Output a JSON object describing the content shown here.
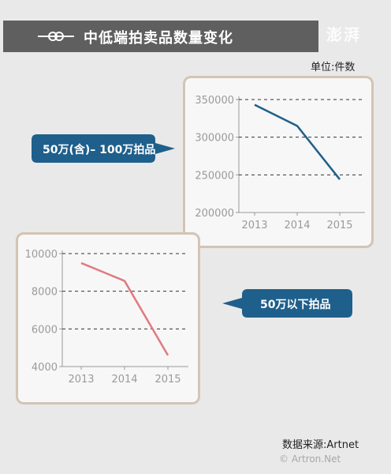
{
  "header": {
    "title": "中低端拍卖品数量变化",
    "logo": "澎湃"
  },
  "unit_label": "单位:件数",
  "source_label": "数据来源:Artnet",
  "watermark": "© Artron.Net",
  "colors": {
    "header_bg": "#5f5f5f",
    "panel_border": "#d3c4b4",
    "callout_bg": "#1f5f8b",
    "series_blue": "#1f5f8b",
    "series_red": "#e07a7f"
  },
  "chart_data": [
    {
      "type": "line",
      "callout": "50万(含)– 100万拍品",
      "categories": [
        "2013",
        "2014",
        "2015"
      ],
      "series": [
        {
          "values": [
            343000,
            315000,
            244000
          ]
        }
      ],
      "yticks": [
        "350000",
        "300000",
        "250000",
        "200000"
      ],
      "ylim": [
        200000,
        350000
      ],
      "grid": true
    },
    {
      "type": "line",
      "callout": "50万以下拍品",
      "categories": [
        "2013",
        "2014",
        "2015"
      ],
      "series": [
        {
          "values": [
            9500,
            8550,
            4600
          ]
        }
      ],
      "yticks": [
        "10000",
        "8000",
        "6000",
        "4000"
      ],
      "ylim": [
        4000,
        10000
      ],
      "grid": true
    }
  ]
}
